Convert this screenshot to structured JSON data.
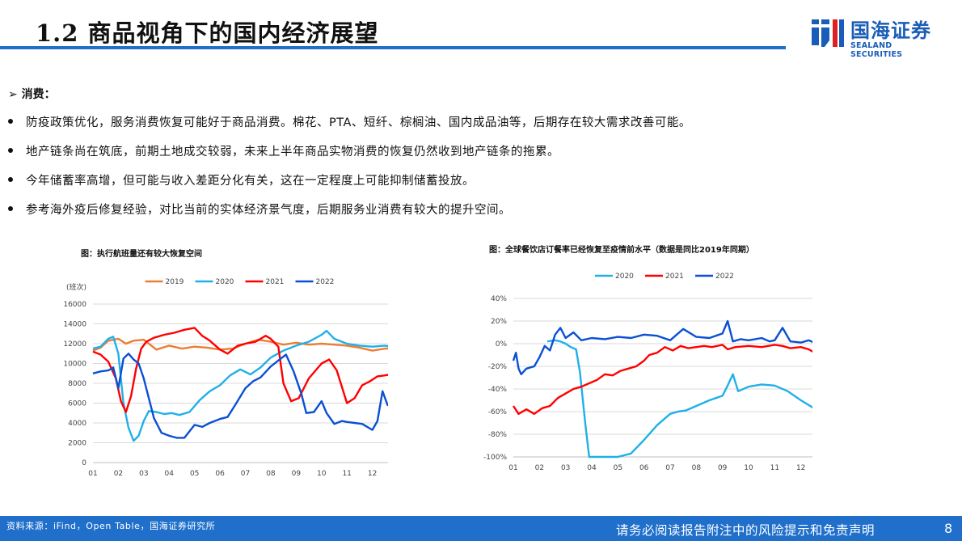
{
  "header": {
    "title": "1.2 商品视角下的国内经济展望",
    "logo_name": "国海证券",
    "logo_en": "SEALAND SECURITIES",
    "accent": "#1f6fcb"
  },
  "section": {
    "label": "➢ 消费："
  },
  "bullets": [
    "防疫政策优化，服务消费恢复可能好于商品消费。棉花、PTA、短纤、棕榈油、国内成品油等，后期存在较大需求改善可能。",
    "地产链条尚在筑底，前期土地成交较弱，未来上半年商品实物消费的恢复仍然收到地产链条的拖累。",
    "今年储蓄率高增，但可能与收入差距分化有关，这在一定程度上可能抑制储蓄投放。",
    "参考海外疫后修复经验，对比当前的实体经济景气度，后期服务业消费有较大的提升空间。"
  ],
  "chart_data": [
    {
      "type": "line",
      "title": "图：执行航班量还有较大恢复空间",
      "ylabel": "(班次)",
      "ylim": [
        0,
        16000
      ],
      "yticks": [
        0,
        2000,
        4000,
        6000,
        8000,
        10000,
        12000,
        14000,
        16000
      ],
      "xlim": [
        1,
        13
      ],
      "xticks": [
        "01",
        "02",
        "03",
        "04",
        "05",
        "06",
        "07",
        "08",
        "09",
        "10",
        "11",
        "12"
      ],
      "grid": true,
      "legend": "top",
      "series": [
        {
          "name": "2019",
          "color": "#ed7d31",
          "x": [
            1,
            1.3,
            1.6,
            2,
            2.3,
            2.6,
            3,
            3.5,
            4,
            4.5,
            5,
            5.5,
            6,
            6.5,
            7,
            7.5,
            8,
            8.5,
            9,
            9.5,
            10,
            10.5,
            11,
            11.5,
            12,
            12.5,
            12.9
          ],
          "y": [
            11300,
            11600,
            12300,
            12500,
            12000,
            12300,
            12400,
            11400,
            11800,
            11500,
            11700,
            11600,
            11400,
            11500,
            12000,
            12400,
            12200,
            11900,
            12100,
            11900,
            12000,
            11900,
            11800,
            11600,
            11300,
            11500,
            11500
          ]
        },
        {
          "name": "2020",
          "color": "#20b0e8",
          "x": [
            1,
            1.3,
            1.6,
            1.8,
            2,
            2.2,
            2.4,
            2.6,
            2.8,
            3,
            3.2,
            3.5,
            3.8,
            4.1,
            4.4,
            4.8,
            5.2,
            5.6,
            6,
            6.4,
            6.8,
            7.2,
            7.6,
            8,
            8.5,
            9,
            9.5,
            10,
            10.2,
            10.5,
            11,
            11.5,
            12,
            12.5,
            12.9
          ],
          "y": [
            11500,
            11700,
            12500,
            12700,
            11000,
            6000,
            3500,
            2200,
            2700,
            4200,
            5200,
            5100,
            4900,
            5000,
            4800,
            5100,
            6300,
            7200,
            7800,
            8800,
            9400,
            8900,
            9600,
            10600,
            11300,
            11800,
            12200,
            12900,
            13300,
            12500,
            12000,
            11800,
            11700,
            11800,
            11600
          ]
        },
        {
          "name": "2021",
          "color": "#ff0000",
          "x": [
            1,
            1.3,
            1.6,
            1.9,
            2.1,
            2.3,
            2.5,
            2.7,
            2.9,
            3.1,
            3.4,
            3.8,
            4.2,
            4.6,
            5,
            5.3,
            5.6,
            6,
            6.3,
            6.7,
            7,
            7.4,
            7.8,
            8,
            8.3,
            8.5,
            8.8,
            9.1,
            9.5,
            10,
            10.3,
            10.6,
            11,
            11.3,
            11.6,
            11.9,
            12.2,
            12.5,
            12.9
          ],
          "y": [
            11200,
            10900,
            10200,
            8500,
            6200,
            5100,
            6700,
            9500,
            11500,
            12200,
            12600,
            12900,
            13100,
            13400,
            13600,
            12800,
            12300,
            11400,
            11000,
            11800,
            12000,
            12200,
            12800,
            12500,
            11700,
            8000,
            6200,
            6500,
            8500,
            10000,
            10400,
            9300,
            6000,
            6500,
            7800,
            8200,
            8700,
            8800,
            9000
          ]
        },
        {
          "name": "2022",
          "color": "#0a4fd4",
          "x": [
            1,
            1.3,
            1.6,
            1.8,
            2,
            2.2,
            2.4,
            2.6,
            2.8,
            3,
            3.2,
            3.4,
            3.7,
            4,
            4.3,
            4.6,
            5,
            5.3,
            5.6,
            6,
            6.3,
            6.6,
            7,
            7.3,
            7.6,
            8,
            8.3,
            8.6,
            8.9,
            9.2,
            9.4,
            9.7,
            10,
            10.2,
            10.5,
            10.8,
            11,
            11.3,
            11.6,
            12,
            12.2,
            12.4,
            12.6,
            12.8,
            12.9
          ],
          "y": [
            9000,
            9200,
            9300,
            9600,
            7500,
            10500,
            11000,
            10400,
            10000,
            8500,
            6500,
            4500,
            3000,
            2700,
            2500,
            2500,
            3800,
            3600,
            4000,
            4400,
            4600,
            5800,
            7500,
            8200,
            8600,
            9700,
            10300,
            10900,
            9200,
            7000,
            5000,
            5100,
            6200,
            5000,
            3900,
            4200,
            4100,
            4000,
            3900,
            3300,
            4200,
            7200,
            5800,
            6300,
            6800
          ]
        }
      ]
    },
    {
      "type": "line",
      "title": "图：全球餐饮店订餐率已经恢复至疫情前水平（数据是同比2019年同期）",
      "ylim": [
        -100,
        40
      ],
      "yticks": [
        "-100%",
        "-80%",
        "-60%",
        "-40%",
        "-20%",
        "0%",
        "20%",
        "40%"
      ],
      "xlim": [
        1,
        13
      ],
      "xticks": [
        "01",
        "02",
        "03",
        "04",
        "05",
        "06",
        "07",
        "08",
        "09",
        "10",
        "11",
        "12"
      ],
      "grid": true,
      "legend": "top",
      "series": [
        {
          "name": "2020",
          "color": "#20b0e8",
          "x": [
            2.3,
            2.6,
            2.8,
            3,
            3.2,
            3.4,
            3.55,
            3.75,
            3.9,
            4,
            4.5,
            5,
            5.5,
            6,
            6.5,
            7,
            7.3,
            7.6,
            8,
            8.5,
            9,
            9.2,
            9.4,
            9.6,
            10,
            10.5,
            11,
            11.5,
            12,
            12.5,
            12.9
          ],
          "y": [
            2,
            3,
            2,
            0,
            -3,
            -5,
            -25,
            -70,
            -100,
            -100,
            -100,
            -100,
            -97,
            -85,
            -72,
            -62,
            -60,
            -59,
            -55,
            -50,
            -46,
            -37,
            -27,
            -42,
            -38,
            -36,
            -37,
            -42,
            -50,
            -57,
            -61
          ]
        },
        {
          "name": "2021",
          "color": "#ff0000",
          "x": [
            1,
            1.2,
            1.5,
            1.8,
            2.1,
            2.4,
            2.7,
            3,
            3.3,
            3.6,
            3.9,
            4.2,
            4.5,
            4.8,
            5.1,
            5.4,
            5.7,
            6,
            6.2,
            6.5,
            6.8,
            7.1,
            7.4,
            7.7,
            8,
            8.3,
            8.6,
            9,
            9.2,
            9.5,
            10,
            10.5,
            11,
            11.3,
            11.6,
            12,
            12.3,
            12.6,
            12.8,
            12.9
          ],
          "y": [
            -55,
            -62,
            -58,
            -62,
            -57,
            -55,
            -48,
            -44,
            -40,
            -38,
            -35,
            -32,
            -27,
            -28,
            -24,
            -22,
            -20,
            -15,
            -10,
            -8,
            -3,
            -6,
            -2,
            -4,
            -3,
            -2,
            -3,
            -1,
            -5,
            -3,
            -2,
            -3,
            -1,
            -2,
            -4,
            -3,
            -5,
            -9,
            -11,
            -23
          ]
        },
        {
          "name": "2022",
          "color": "#0a4fd4",
          "x": [
            1,
            1.1,
            1.2,
            1.3,
            1.5,
            1.8,
            2,
            2.2,
            2.4,
            2.6,
            2.8,
            3,
            3.3,
            3.6,
            4,
            4.5,
            5,
            5.5,
            6,
            6.5,
            7,
            7.5,
            8,
            8.5,
            9,
            9.2,
            9.4,
            9.7,
            10,
            10.5,
            10.8,
            11,
            11.3,
            11.6,
            12,
            12.3,
            12.6,
            12.9
          ],
          "y": [
            -15,
            -8,
            -22,
            -27,
            -22,
            -20,
            -12,
            -2,
            -6,
            8,
            14,
            5,
            10,
            3,
            5,
            4,
            6,
            5,
            8,
            7,
            3,
            13,
            6,
            5,
            9,
            20,
            2,
            4,
            3,
            5,
            2,
            3,
            14,
            2,
            1,
            3,
            0,
            1
          ]
        }
      ]
    }
  ],
  "footer": {
    "source": "资料来源：iFind，Open Table，国海证券研究所",
    "disclaimer": "请务必阅读报告附注中的风险提示和免责声明",
    "page": "8"
  }
}
